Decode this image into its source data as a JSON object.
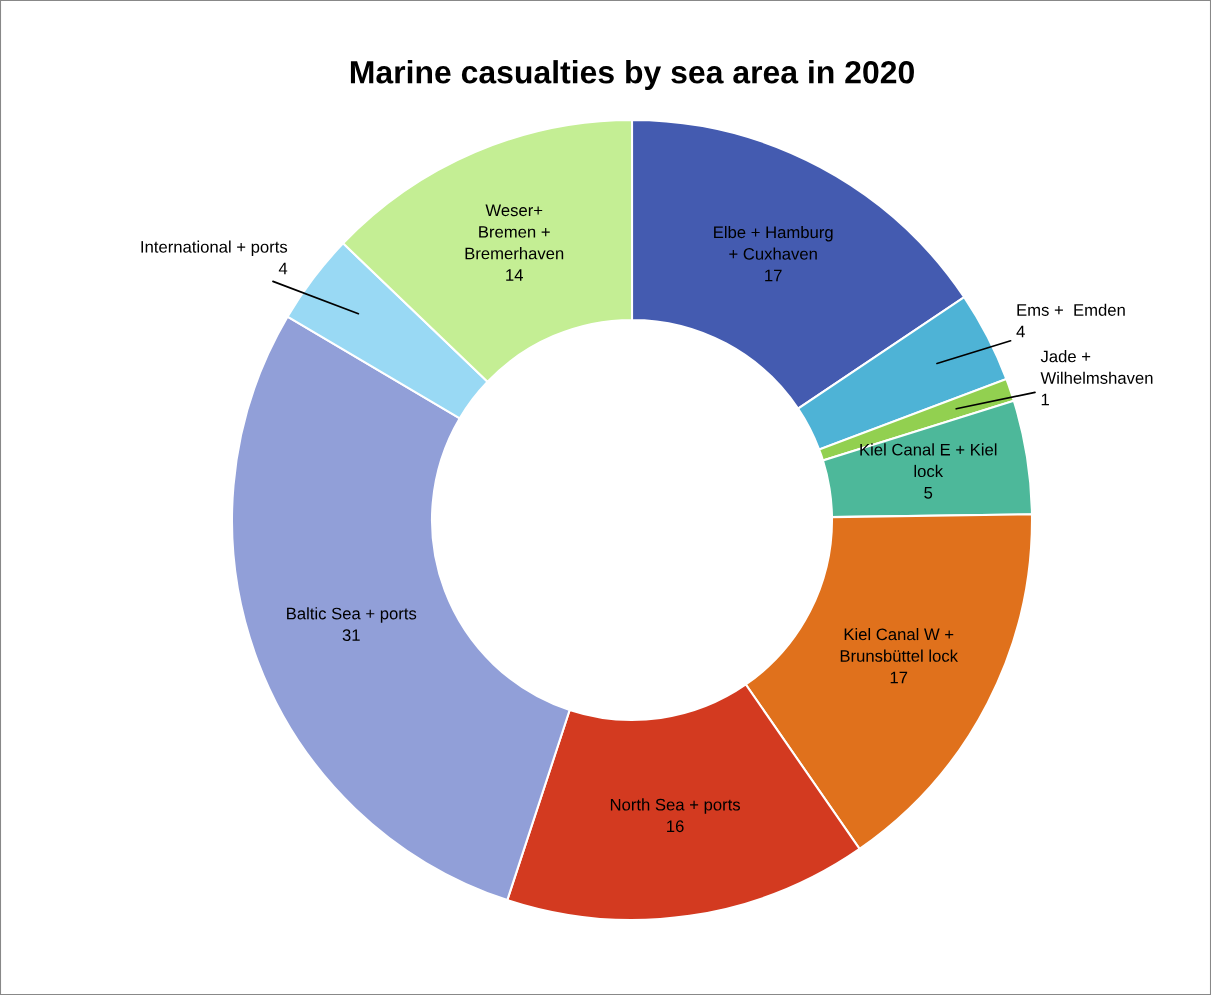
{
  "chart_data": {
    "type": "donut",
    "title": "Marine casualties by sea area in 2020",
    "categories": [
      "Elbe + Hamburg\n+ Cuxhaven",
      "Ems +  Emden",
      "Jade +\nWilhelmshaven",
      "Kiel Canal E + Kiel\nlock",
      "Kiel Canal W +\nBrunsbüttel lock",
      "North Sea + ports",
      "Baltic Sea + ports",
      "International + ports",
      "Weser+\nBremen +\nBremerhaven"
    ],
    "values": [
      17,
      4,
      1,
      5,
      17,
      16,
      31,
      4,
      14
    ],
    "colors": [
      "#445bb0",
      "#4eb3d6",
      "#92d050",
      "#4db89a",
      "#e0711c",
      "#d33a20",
      "#919fd8",
      "#99d9f4",
      "#c4ee94"
    ],
    "data_labels": true,
    "legend": false
  }
}
